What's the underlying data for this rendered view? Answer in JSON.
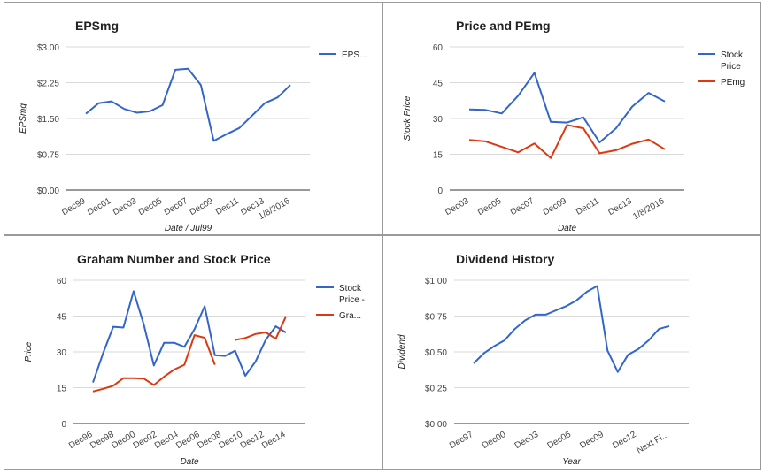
{
  "chart_data": [
    {
      "id": "eps",
      "type": "line",
      "title": "EPSmg",
      "xlabel": "Date / Jul99",
      "ylabel": "EPSmg",
      "ylim": [
        0,
        3
      ],
      "yticks": [
        "$0.00",
        "$0.75",
        "$1.50",
        "$2.25",
        "$3.00"
      ],
      "xticks": [
        "Dec99",
        "Dec01",
        "Dec03",
        "Dec05",
        "Dec07",
        "Dec09",
        "Dec11",
        "Dec13",
        "1/8/2016"
      ],
      "grid": true,
      "legend": "right",
      "series": [
        {
          "name": "EPS...",
          "color": "#3366cc",
          "values": [
            1.6,
            1.82,
            1.86,
            1.7,
            1.62,
            1.65,
            1.78,
            2.52,
            2.54,
            2.2,
            1.03,
            1.17,
            1.3,
            1.56,
            1.82,
            1.94,
            2.2
          ]
        }
      ]
    },
    {
      "id": "price-pe",
      "type": "line",
      "title": "Price and PEmg",
      "xlabel": "Date",
      "ylabel": "Stock Price",
      "ylim": [
        0,
        60
      ],
      "yticks": [
        "0",
        "15",
        "30",
        "45",
        "60"
      ],
      "xticks": [
        "Dec03",
        "Dec05",
        "Dec07",
        "Dec09",
        "Dec11",
        "Dec13",
        "1/8/2016"
      ],
      "grid": true,
      "legend": "right",
      "series": [
        {
          "name": "Stock Price",
          "color": "#3366cc",
          "values": [
            33.8,
            33.6,
            32.1,
            39.5,
            49.1,
            28.6,
            28.3,
            30.5,
            20.0,
            25.9,
            35.0,
            40.7,
            37.1
          ]
        },
        {
          "name": "PEmg",
          "color": "#dc3912",
          "values": [
            21.0,
            20.4,
            18.1,
            15.8,
            19.5,
            13.4,
            27.3,
            25.9,
            15.4,
            16.7,
            19.4,
            21.2,
            17.1
          ]
        }
      ]
    },
    {
      "id": "graham",
      "type": "line",
      "title": "Graham Number and Stock Price",
      "xlabel": "Date",
      "ylabel": "Price",
      "ylim": [
        0,
        60
      ],
      "yticks": [
        "0",
        "15",
        "30",
        "45",
        "60"
      ],
      "xticks": [
        "Dec96",
        "Dec98",
        "Dec00",
        "Dec02",
        "Dec04",
        "Dec06",
        "Dec08",
        "Dec10",
        "Dec12",
        "Dec14"
      ],
      "grid": true,
      "legend": "right",
      "series": [
        {
          "name": "Stock Price -",
          "color": "#3366cc",
          "values": [
            17.2,
            29.5,
            40.5,
            40.2,
            55.4,
            41.5,
            24.3,
            33.8,
            33.8,
            32.1,
            39.5,
            49.1,
            28.6,
            28.3,
            30.5,
            20.0,
            25.9,
            35.0,
            40.7,
            38.1
          ]
        },
        {
          "name": "Gra...",
          "color": "#dc3912",
          "values": [
            13.4,
            14.5,
            15.8,
            19.0,
            19.0,
            18.8,
            16.1,
            19.6,
            22.6,
            24.6,
            37.0,
            35.9,
            24.6,
            null,
            35.0,
            35.8,
            37.5,
            38.2,
            35.5,
            44.9
          ]
        }
      ]
    },
    {
      "id": "dividend",
      "type": "line",
      "title": "Dividend History",
      "xlabel": "Year",
      "ylabel": "Dividend",
      "ylim": [
        0,
        1
      ],
      "yticks": [
        "$0.00",
        "$0.25",
        "$0.50",
        "$0.75",
        "$1.00"
      ],
      "xticks": [
        "Dec97",
        "Dec00",
        "Dec03",
        "Dec06",
        "Dec09",
        "Dec12",
        "Next Fi..."
      ],
      "grid": true,
      "legend": "none",
      "series": [
        {
          "name": "",
          "color": "#3366cc",
          "values": [
            0.42,
            0.49,
            0.54,
            0.58,
            0.66,
            0.72,
            0.76,
            0.76,
            0.79,
            0.82,
            0.86,
            0.92,
            0.96,
            0.51,
            0.36,
            0.48,
            0.52,
            0.58,
            0.66,
            0.68
          ]
        }
      ]
    }
  ]
}
